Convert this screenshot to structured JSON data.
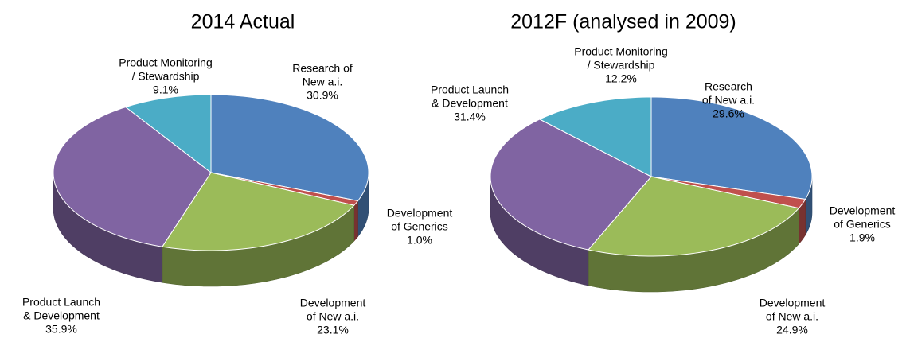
{
  "chart_data": [
    {
      "type": "pie3d",
      "title": "2014 Actual",
      "categories": [
        "Research of\nNew a.i.",
        "Development\nof Generics",
        "Development\nof New a.i.",
        "Product Launch\n& Development",
        "Product Monitoring\n/ Stewardship"
      ],
      "values": [
        30.9,
        1.0,
        23.1,
        35.9,
        9.1
      ],
      "value_labels": [
        "30.9%",
        "1.0%",
        "23.1%",
        "35.9%",
        "9.1%"
      ],
      "colors": [
        "#4f81bd",
        "#c0504d",
        "#9bbb59",
        "#8064a2",
        "#4bacc6"
      ]
    },
    {
      "type": "pie3d",
      "title": "2012F (analysed in 2009)",
      "categories": [
        "Research\nof New a.i.",
        "Development\nof Generics",
        "Development\nof New a.i.",
        "Product Launch\n& Development",
        "Product Monitoring\n/ Stewardship"
      ],
      "values": [
        29.6,
        1.9,
        24.9,
        31.4,
        12.2
      ],
      "value_labels": [
        "29.6%",
        "1.9%",
        "24.9%",
        "31.4%",
        "12.2%"
      ],
      "colors": [
        "#4f81bd",
        "#c0504d",
        "#9bbb59",
        "#8064a2",
        "#4bacc6"
      ]
    }
  ]
}
